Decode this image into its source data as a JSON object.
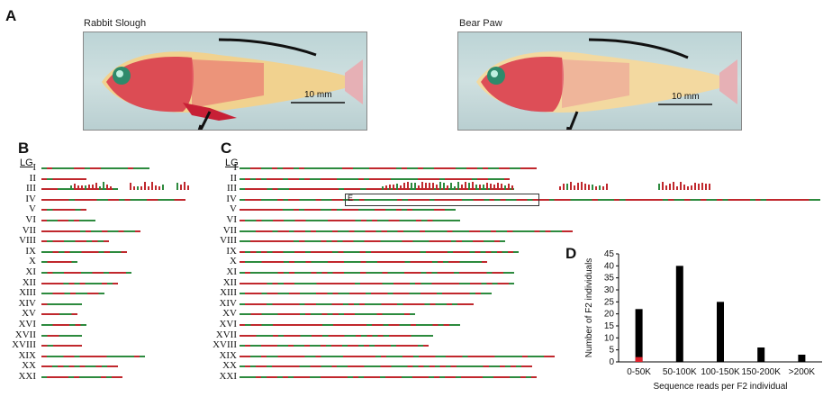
{
  "panels": {
    "a": "A",
    "b": "B",
    "c": "C",
    "d": "D"
  },
  "photos": {
    "left_label": "Rabbit Slough",
    "right_label": "Bear Paw",
    "scale_bar": "10 mm"
  },
  "linkage": {
    "header": "LG",
    "groups": [
      "I",
      "II",
      "III",
      "IV",
      "V",
      "VI",
      "VII",
      "VIII",
      "IX",
      "X",
      "XI",
      "XII",
      "XIII",
      "XIV",
      "XV",
      "XVI",
      "XVII",
      "XVIII",
      "XIX",
      "XX",
      "XXI"
    ],
    "box_label": "E"
  },
  "colors": {
    "red": "#c0282d",
    "green": "#2d8a3e",
    "bar": "#000000",
    "bar_highlight": "#e0202a"
  },
  "chart_data": {
    "type": "bar",
    "categories": [
      "0-50K",
      "50-100K",
      "100-150K",
      "150-200K",
      ">200K"
    ],
    "values": [
      22,
      40,
      25,
      6,
      3
    ],
    "highlight": {
      "category": "0-50K",
      "value": 2
    },
    "xlabel": "Sequence reads per F2 individual",
    "ylabel": "Number of F2 individuals",
    "ylim": [
      0,
      45
    ],
    "yticks": [
      0,
      5,
      10,
      15,
      20,
      25,
      30,
      35,
      40,
      45
    ],
    "grid": false
  }
}
